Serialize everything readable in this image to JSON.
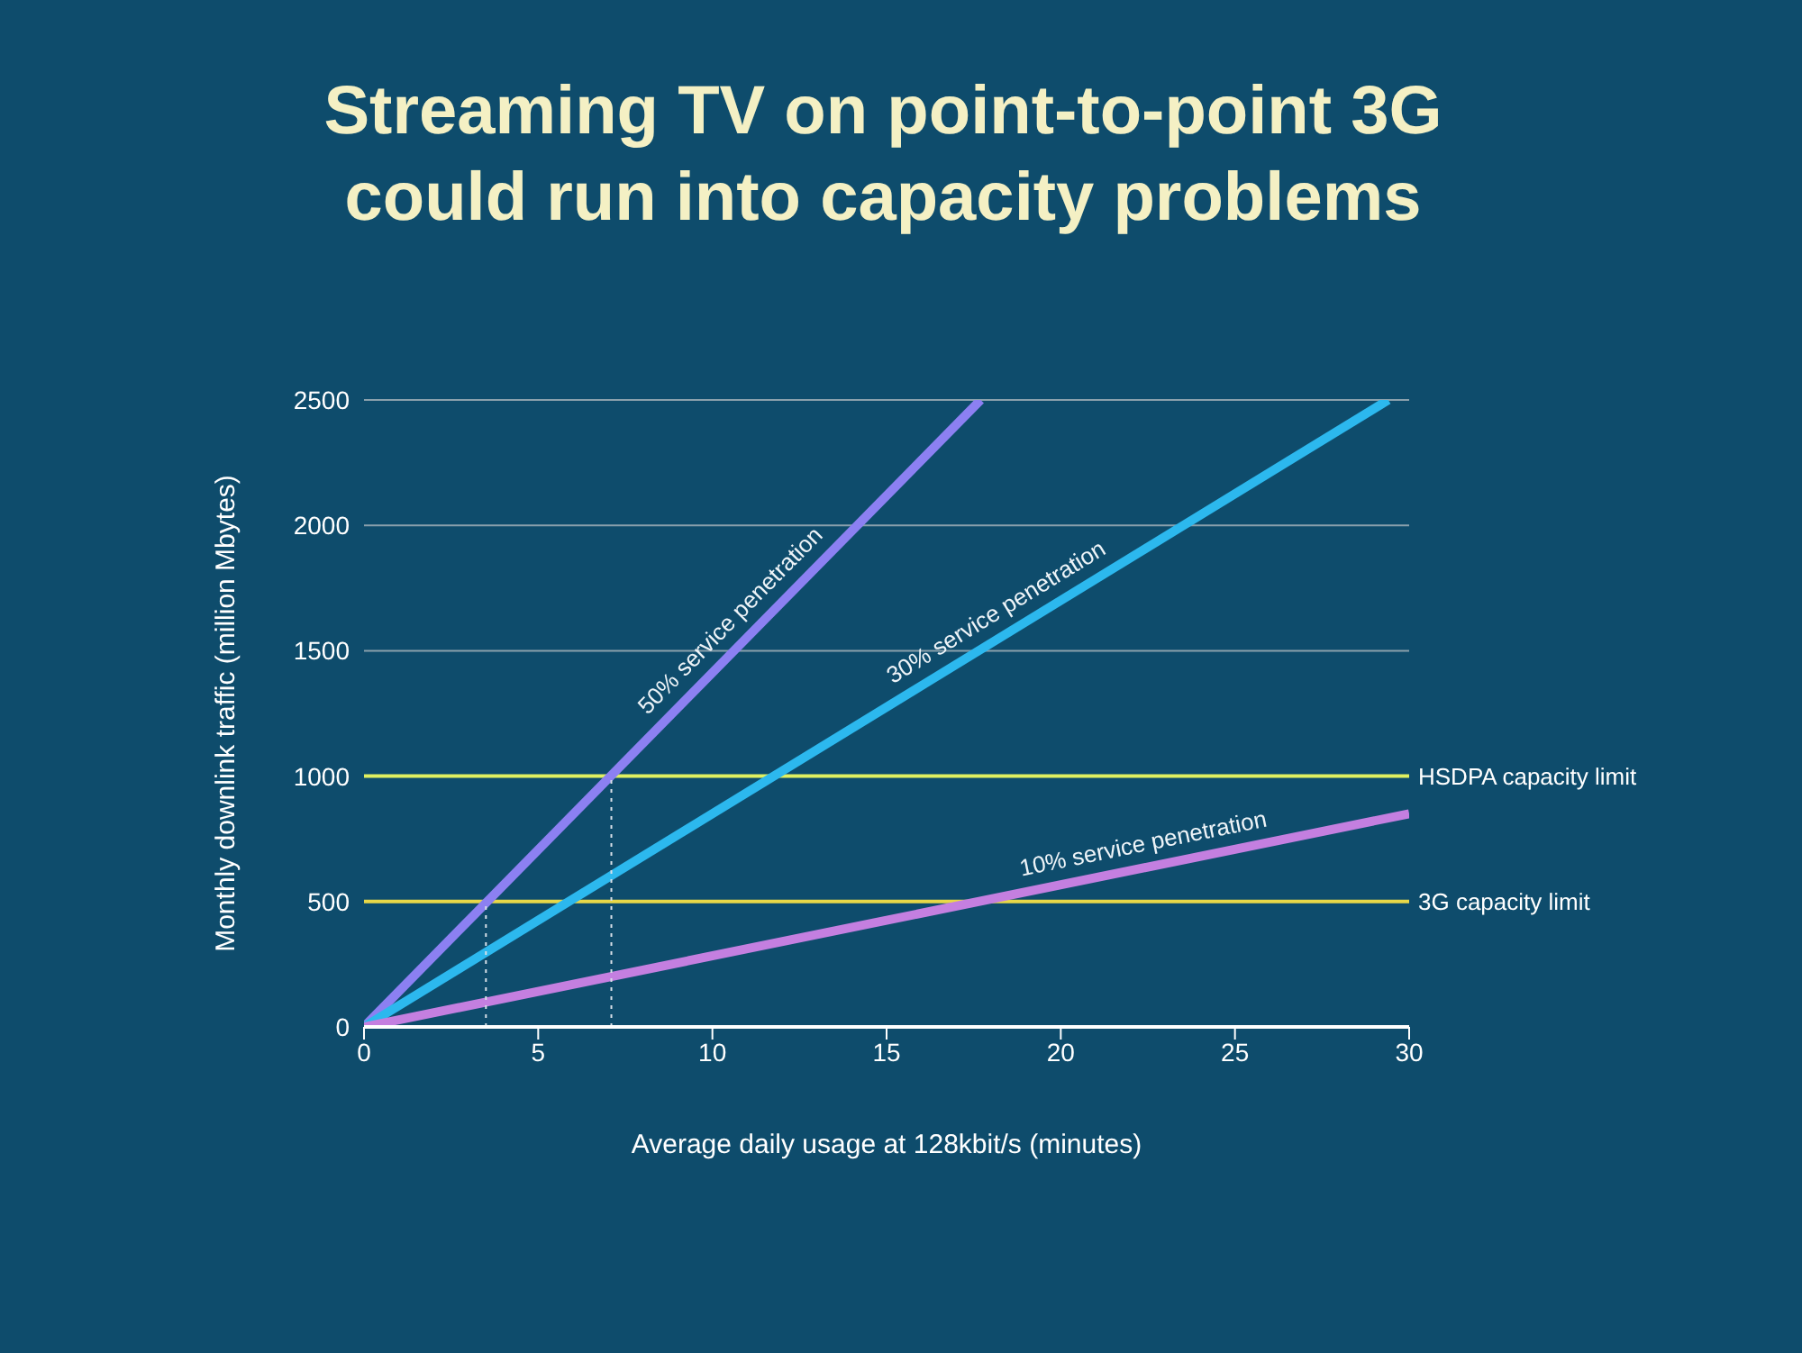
{
  "chart_data": {
    "type": "line",
    "title": "Streaming TV on point-to-point 3G could run into capacity problems",
    "xlabel": "Average daily usage at 128kbit/s (minutes)",
    "ylabel": "Monthly downlink traffic (million Mbytes)",
    "xlim": [
      0,
      30
    ],
    "ylim": [
      0,
      2500
    ],
    "xticks": [
      0,
      5,
      10,
      15,
      20,
      25,
      30
    ],
    "yticks": [
      0,
      500,
      1000,
      1500,
      2000,
      2500
    ],
    "grid": "y",
    "marker": "none",
    "series": [
      {
        "name": "50% service penetration",
        "color": "#8c80f2",
        "x": [
          0,
          17.7
        ],
        "values": [
          0,
          2500
        ],
        "line_style": "solid"
      },
      {
        "name": "30% service penetration",
        "color": "#2cb8ee",
        "x": [
          0,
          29.4
        ],
        "values": [
          0,
          2500
        ],
        "line_style": "solid"
      },
      {
        "name": "10% service penetration",
        "color": "#c47fe0",
        "x": [
          0,
          30
        ],
        "values": [
          0,
          850
        ],
        "line_style": "solid"
      },
      {
        "color": "#d8e0e8",
        "x": [
          3.5,
          3.5
        ],
        "values": [
          0,
          500
        ],
        "line_style": "dotted"
      },
      {
        "color": "#d8e0e8",
        "x": [
          7.1,
          7.1
        ],
        "values": [
          0,
          1000
        ],
        "line_style": "dotted"
      }
    ],
    "ref_lines": [
      {
        "axis": "y",
        "value": 1000,
        "label": "HSDPA capacity limit",
        "color": "#e0f060"
      },
      {
        "axis": "y",
        "value": 500,
        "label": "3G capacity limit",
        "color": "#e8d848"
      }
    ]
  }
}
